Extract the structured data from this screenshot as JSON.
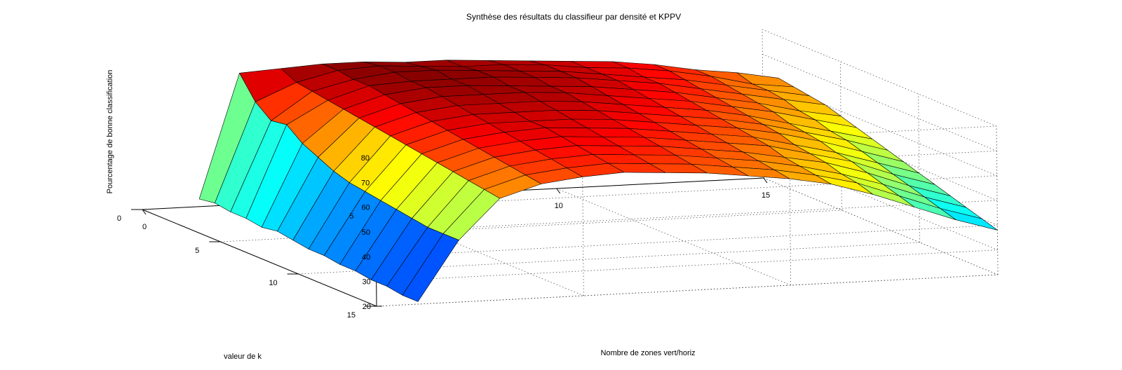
{
  "chart_data": {
    "type": "surface3d",
    "title": "Synthèse des résultats du classifieur par densité et KPPV",
    "xlabel": "Nombre de zones vert/horiz",
    "ylabel": "valeur de k",
    "zlabel": "Pourcentage de bonne classification",
    "xlim": [
      0,
      15
    ],
    "ylim": [
      0,
      15
    ],
    "zlim": [
      20,
      80
    ],
    "x_ticks": [
      "0",
      "5",
      "10",
      "15"
    ],
    "y_ticks": [
      "0",
      "5",
      "10",
      "15"
    ],
    "z_ticks": [
      "20",
      "30",
      "40",
      "50",
      "60",
      "70",
      "80"
    ],
    "grid": true,
    "colormap": "jet",
    "x": [
      1,
      2,
      3,
      4,
      5,
      6,
      7,
      8,
      9,
      10,
      11,
      12,
      13,
      14,
      15
    ],
    "y": [
      1,
      2,
      3,
      4,
      5,
      6,
      7,
      8,
      9,
      10,
      11,
      12,
      13,
      14,
      15
    ],
    "z": [
      [
        26,
        76,
        77,
        78,
        78,
        77,
        77,
        76,
        75,
        74,
        73,
        71,
        68,
        66,
        63
      ],
      [
        27,
        67,
        74,
        78,
        79,
        78,
        77,
        77,
        76,
        74,
        73,
        71,
        68,
        64,
        62
      ],
      [
        26,
        62,
        73,
        77,
        79,
        79,
        78,
        77,
        76,
        74,
        72,
        70,
        67,
        64,
        61
      ],
      [
        26,
        63,
        72,
        77,
        78,
        78,
        78,
        77,
        76,
        74,
        72,
        69,
        66,
        63,
        60
      ],
      [
        25,
        58,
        71,
        76,
        78,
        78,
        77,
        76,
        75,
        73,
        71,
        68,
        65,
        61,
        58
      ],
      [
        26,
        55,
        70,
        75,
        77,
        77,
        77,
        76,
        74,
        72,
        70,
        67,
        64,
        60,
        56
      ],
      [
        25,
        52,
        69,
        74,
        76,
        76,
        76,
        75,
        73,
        71,
        69,
        66,
        62,
        58,
        54
      ],
      [
        24,
        50,
        68,
        73,
        75,
        75,
        75,
        74,
        72,
        70,
        68,
        65,
        61,
        57,
        52
      ],
      [
        24,
        49,
        67,
        72,
        74,
        74,
        74,
        73,
        71,
        69,
        67,
        64,
        60,
        55,
        50
      ],
      [
        23,
        48,
        66,
        71,
        73,
        74,
        73,
        72,
        70,
        68,
        66,
        62,
        58,
        53,
        48
      ],
      [
        23,
        47,
        65,
        70,
        72,
        73,
        72,
        71,
        69,
        67,
        65,
        61,
        57,
        51,
        46
      ],
      [
        22,
        46,
        64,
        69,
        71,
        72,
        71,
        70,
        68,
        66,
        63,
        60,
        55,
        49,
        44
      ],
      [
        22,
        45,
        63,
        68,
        70,
        71,
        70,
        69,
        67,
        65,
        62,
        58,
        53,
        47,
        42
      ],
      [
        21,
        45,
        62,
        67,
        69,
        70,
        69,
        68,
        66,
        64,
        61,
        57,
        51,
        45,
        40
      ],
      [
        21,
        45,
        61,
        66,
        68,
        69,
        68,
        67,
        65,
        63,
        60,
        55,
        49,
        43,
        38
      ]
    ]
  }
}
